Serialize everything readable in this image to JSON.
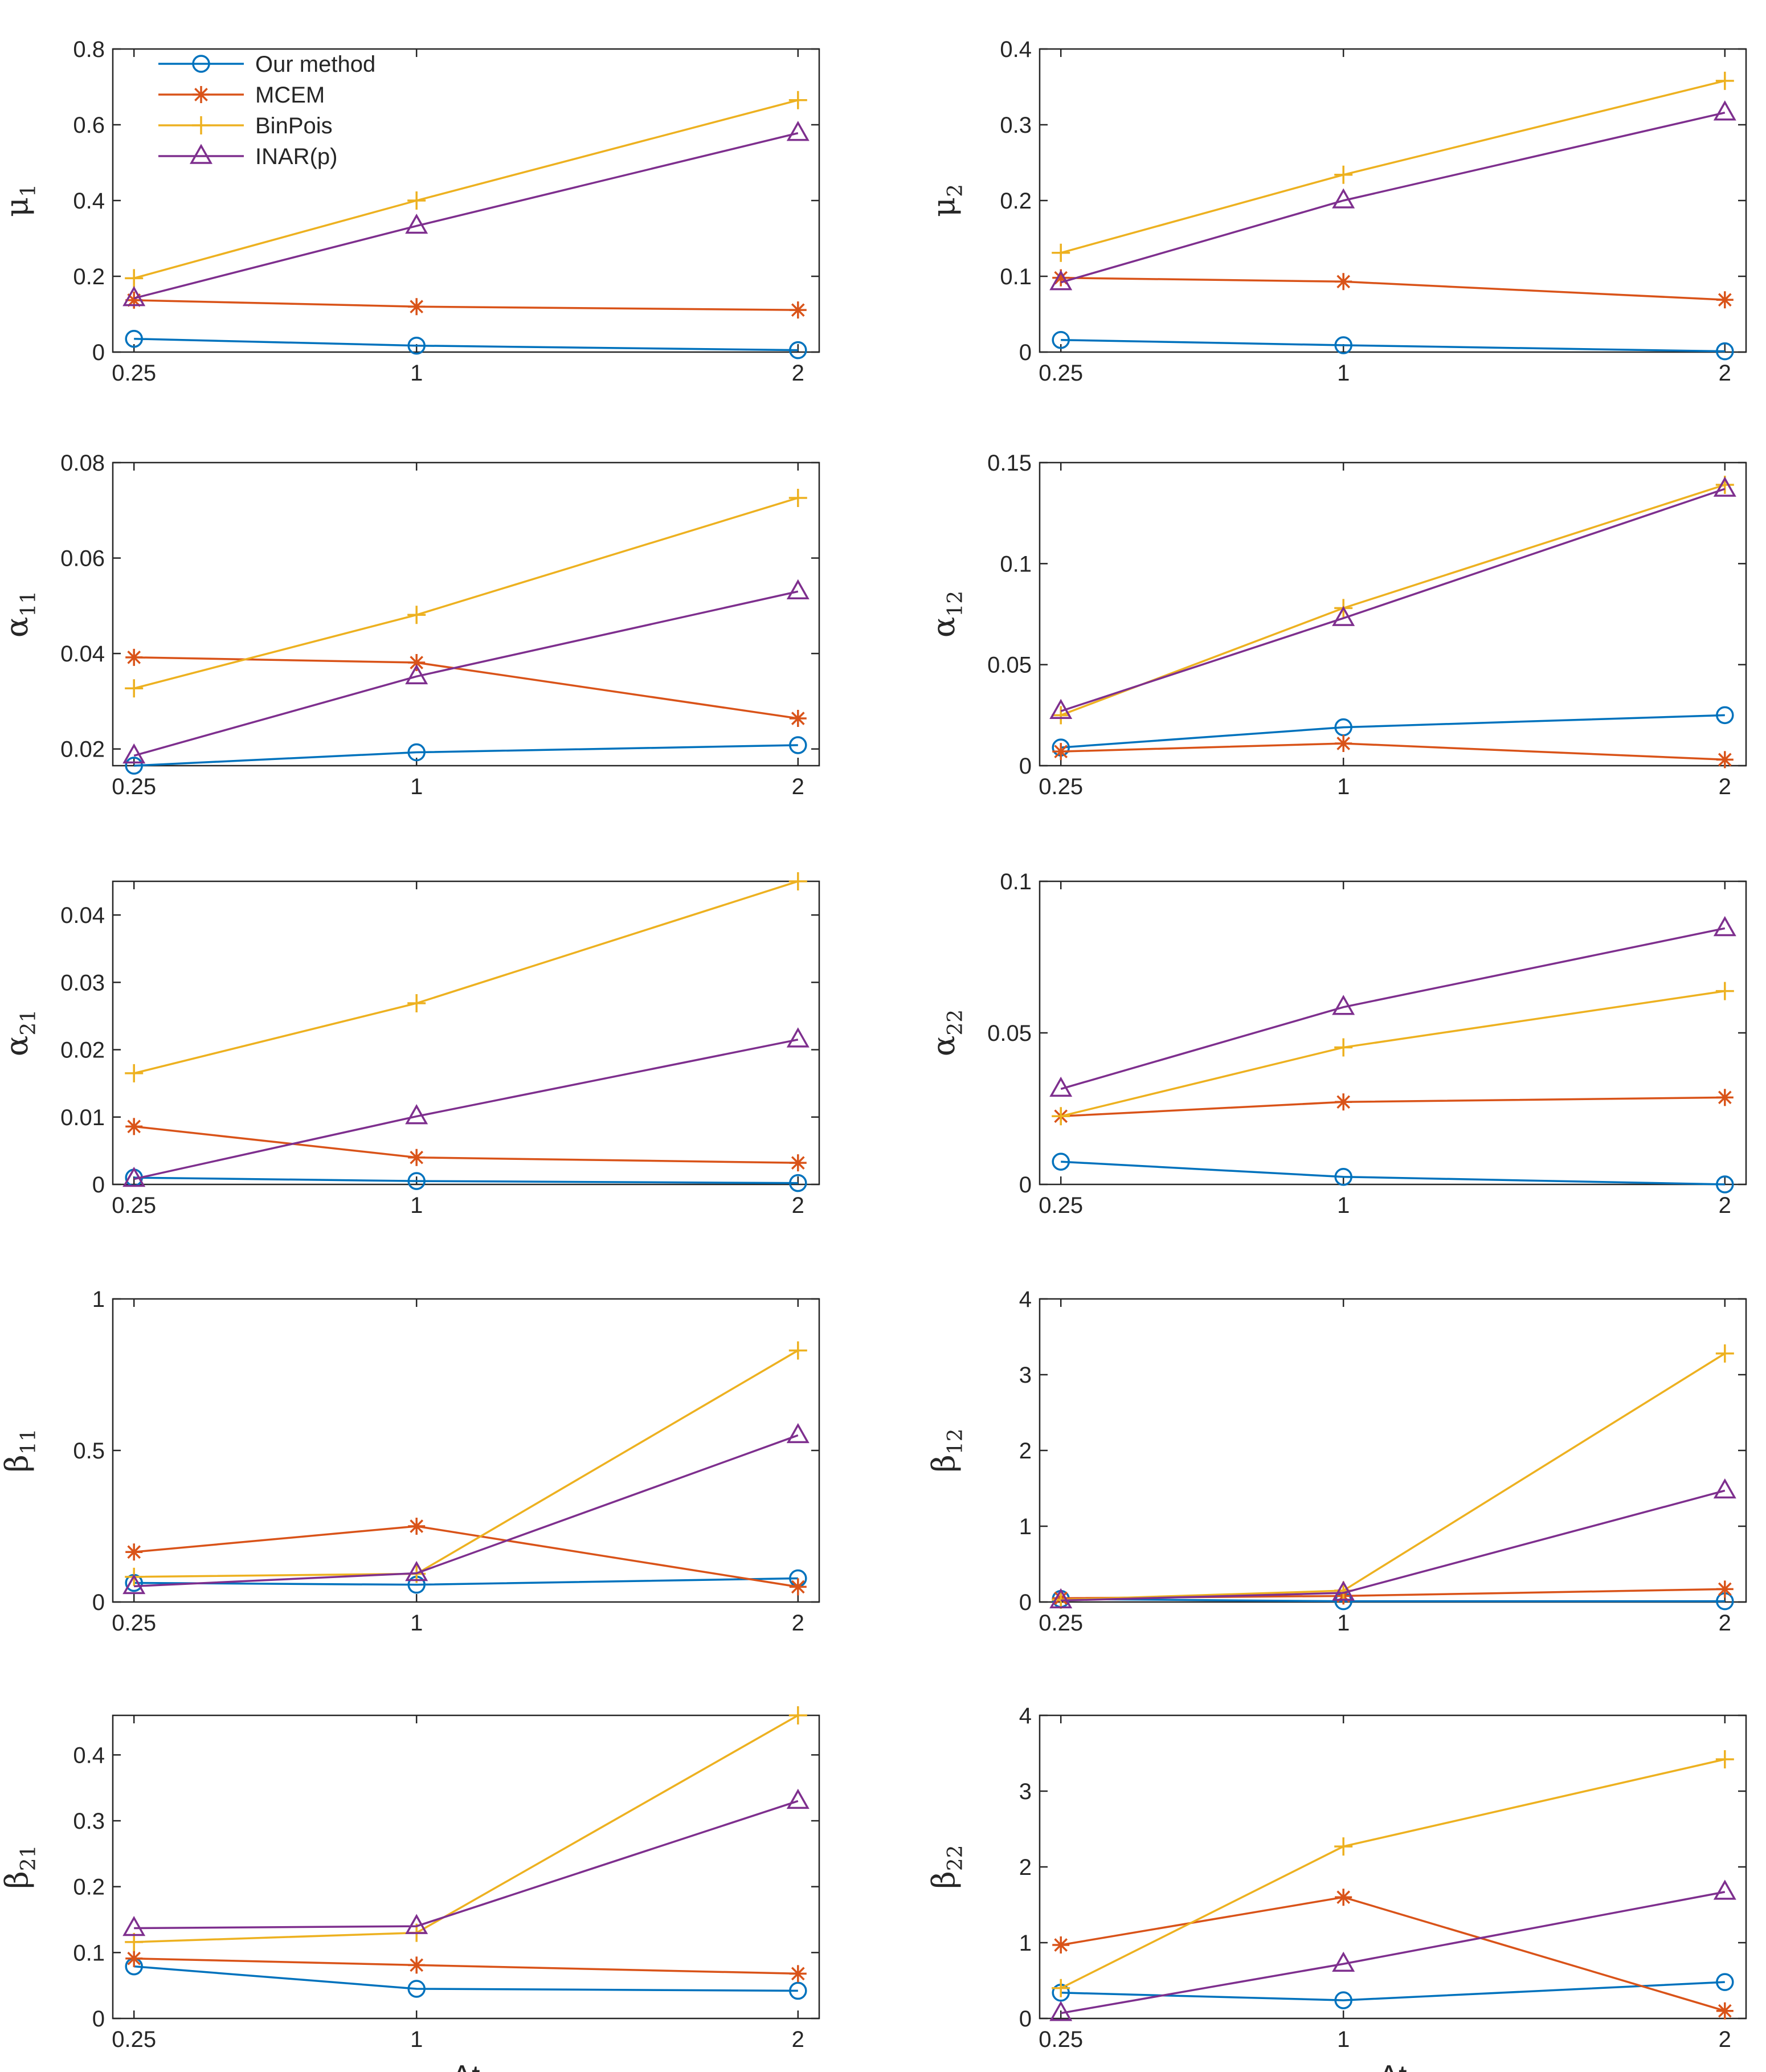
{
  "series_styles": [
    {
      "name": "Our method",
      "color": "#0072BD",
      "marker": "circle"
    },
    {
      "name": "MCEM",
      "color": "#D95319",
      "marker": "asterisk"
    },
    {
      "name": "BinPois",
      "color": "#EDB120",
      "marker": "plus"
    },
    {
      "name": "INAR(p)",
      "color": "#7E2F8E",
      "marker": "triangle"
    }
  ],
  "chart_data": [
    {
      "type": "line",
      "ylabel": "μ",
      "ysub": "1",
      "x": [
        0.25,
        1,
        2
      ],
      "xticks": [
        "0.25",
        "1",
        "2"
      ],
      "xlabel": "",
      "ylim": [
        0,
        0.8
      ],
      "yticks": [
        "0",
        "0.2",
        "0.4",
        "0.6",
        "0.8"
      ],
      "legend": "top-left",
      "series": [
        {
          "name": "Our method",
          "values": [
            0.035,
            0.017,
            0.005
          ]
        },
        {
          "name": "MCEM",
          "values": [
            0.137,
            0.12,
            0.111
          ]
        },
        {
          "name": "BinPois",
          "values": [
            0.195,
            0.4,
            0.665
          ]
        },
        {
          "name": "INAR(p)",
          "values": [
            0.142,
            0.333,
            0.578
          ]
        }
      ]
    },
    {
      "type": "line",
      "ylabel": "μ",
      "ysub": "2",
      "x": [
        0.25,
        1,
        2
      ],
      "xticks": [
        "0.25",
        "1",
        "2"
      ],
      "xlabel": "",
      "ylim": [
        0,
        0.4
      ],
      "yticks": [
        "0",
        "0.1",
        "0.2",
        "0.3",
        "0.4"
      ],
      "series": [
        {
          "name": "Our method",
          "values": [
            0.016,
            0.009,
            0.001
          ]
        },
        {
          "name": "MCEM",
          "values": [
            0.098,
            0.093,
            0.069
          ]
        },
        {
          "name": "BinPois",
          "values": [
            0.131,
            0.234,
            0.358
          ]
        },
        {
          "name": "INAR(p)",
          "values": [
            0.092,
            0.2,
            0.316
          ]
        }
      ]
    },
    {
      "type": "line",
      "ylabel": "α",
      "ysub": "11",
      "x": [
        0.25,
        1,
        2
      ],
      "xticks": [
        "0.25",
        "1",
        "2"
      ],
      "xlabel": "",
      "ylim": [
        0.0165,
        0.08
      ],
      "yticks": [
        "0.02",
        "0.04",
        "0.06",
        "0.08"
      ],
      "series": [
        {
          "name": "Our method",
          "values": [
            0.0165,
            0.0193,
            0.0208
          ]
        },
        {
          "name": "MCEM",
          "values": [
            0.0392,
            0.0381,
            0.0264
          ]
        },
        {
          "name": "BinPois",
          "values": [
            0.0327,
            0.0481,
            0.0726
          ]
        },
        {
          "name": "INAR(p)",
          "values": [
            0.0186,
            0.0352,
            0.053
          ]
        }
      ]
    },
    {
      "type": "line",
      "ylabel": "α",
      "ysub": "12",
      "x": [
        0.25,
        1,
        2
      ],
      "xticks": [
        "0.25",
        "1",
        "2"
      ],
      "xlabel": "",
      "ylim": [
        0,
        0.15
      ],
      "yticks": [
        "0",
        "0.05",
        "0.1",
        "0.15"
      ],
      "series": [
        {
          "name": "Our method",
          "values": [
            0.009,
            0.019,
            0.025
          ]
        },
        {
          "name": "MCEM",
          "values": [
            0.007,
            0.011,
            0.003
          ]
        },
        {
          "name": "BinPois",
          "values": [
            0.025,
            0.078,
            0.139
          ]
        },
        {
          "name": "INAR(p)",
          "values": [
            0.027,
            0.073,
            0.137
          ]
        }
      ]
    },
    {
      "type": "line",
      "ylabel": "α",
      "ysub": "21",
      "x": [
        0.25,
        1,
        2
      ],
      "xticks": [
        "0.25",
        "1",
        "2"
      ],
      "xlabel": "",
      "ylim": [
        0,
        0.045
      ],
      "yticks": [
        "0",
        "0.01",
        "0.02",
        "0.03",
        "0.04"
      ],
      "series": [
        {
          "name": "Our method",
          "values": [
            0.001,
            0.0005,
            0.0002
          ]
        },
        {
          "name": "MCEM",
          "values": [
            0.0086,
            0.004,
            0.0032
          ]
        },
        {
          "name": "BinPois",
          "values": [
            0.0165,
            0.0269,
            0.045
          ]
        },
        {
          "name": "INAR(p)",
          "values": [
            0.0008,
            0.0101,
            0.0215
          ]
        }
      ]
    },
    {
      "type": "line",
      "ylabel": "α",
      "ysub": "22",
      "x": [
        0.25,
        1,
        2
      ],
      "xticks": [
        "0.25",
        "1",
        "2"
      ],
      "xlabel": "",
      "ylim": [
        0,
        0.1
      ],
      "yticks": [
        "0",
        "0.05",
        "0.1"
      ],
      "series": [
        {
          "name": "Our method",
          "values": [
            0.0075,
            0.0025,
            0.0
          ]
        },
        {
          "name": "MCEM",
          "values": [
            0.0225,
            0.0272,
            0.0287
          ]
        },
        {
          "name": "BinPois",
          "values": [
            0.0225,
            0.0452,
            0.0638
          ]
        },
        {
          "name": "INAR(p)",
          "values": [
            0.0315,
            0.0585,
            0.0845
          ]
        }
      ]
    },
    {
      "type": "line",
      "ylabel": "β",
      "ysub": "11",
      "x": [
        0.25,
        1,
        2
      ],
      "xticks": [
        "0.25",
        "1",
        "2"
      ],
      "xlabel": "",
      "ylim": [
        0,
        1
      ],
      "yticks": [
        "0",
        "0.5",
        "1"
      ],
      "series": [
        {
          "name": "Our method",
          "values": [
            0.063,
            0.057,
            0.078
          ]
        },
        {
          "name": "MCEM",
          "values": [
            0.165,
            0.25,
            0.05
          ]
        },
        {
          "name": "BinPois",
          "values": [
            0.083,
            0.093,
            0.83
          ]
        },
        {
          "name": "INAR(p)",
          "values": [
            0.052,
            0.095,
            0.55
          ]
        }
      ]
    },
    {
      "type": "line",
      "ylabel": "β",
      "ysub": "12",
      "x": [
        0.25,
        1,
        2
      ],
      "xticks": [
        "0.25",
        "1",
        "2"
      ],
      "xlabel": "",
      "ylim": [
        0,
        4
      ],
      "yticks": [
        "0",
        "1",
        "2",
        "3",
        "4"
      ],
      "series": [
        {
          "name": "Our method",
          "values": [
            0.04,
            0.01,
            0.01
          ]
        },
        {
          "name": "MCEM",
          "values": [
            0.05,
            0.08,
            0.17
          ]
        },
        {
          "name": "BinPois",
          "values": [
            0.03,
            0.15,
            3.28
          ]
        },
        {
          "name": "INAR(p)",
          "values": [
            0.02,
            0.12,
            1.47
          ]
        }
      ]
    },
    {
      "type": "line",
      "ylabel": "β",
      "ysub": "21",
      "x": [
        0.25,
        1,
        2
      ],
      "xticks": [
        "0.25",
        "1",
        "2"
      ],
      "xlabel": "Δt",
      "ylim": [
        0,
        0.46
      ],
      "yticks": [
        "0",
        "0.1",
        "0.2",
        "0.3",
        "0.4"
      ],
      "series": [
        {
          "name": "Our method",
          "values": [
            0.079,
            0.045,
            0.042
          ]
        },
        {
          "name": "MCEM",
          "values": [
            0.091,
            0.081,
            0.068
          ]
        },
        {
          "name": "BinPois",
          "values": [
            0.116,
            0.13,
            0.46
          ]
        },
        {
          "name": "INAR(p)",
          "values": [
            0.137,
            0.14,
            0.33
          ]
        }
      ]
    },
    {
      "type": "line",
      "ylabel": "β",
      "ysub": "22",
      "x": [
        0.25,
        1,
        2
      ],
      "xticks": [
        "0.25",
        "1",
        "2"
      ],
      "xlabel": "Δt",
      "ylim": [
        0,
        4
      ],
      "yticks": [
        "0",
        "1",
        "2",
        "3",
        "4"
      ],
      "series": [
        {
          "name": "Our method",
          "values": [
            0.34,
            0.24,
            0.48
          ]
        },
        {
          "name": "MCEM",
          "values": [
            0.97,
            1.6,
            0.1
          ]
        },
        {
          "name": "BinPois",
          "values": [
            0.4,
            2.27,
            3.42
          ]
        },
        {
          "name": "INAR(p)",
          "values": [
            0.07,
            0.72,
            1.67
          ]
        }
      ]
    }
  ]
}
